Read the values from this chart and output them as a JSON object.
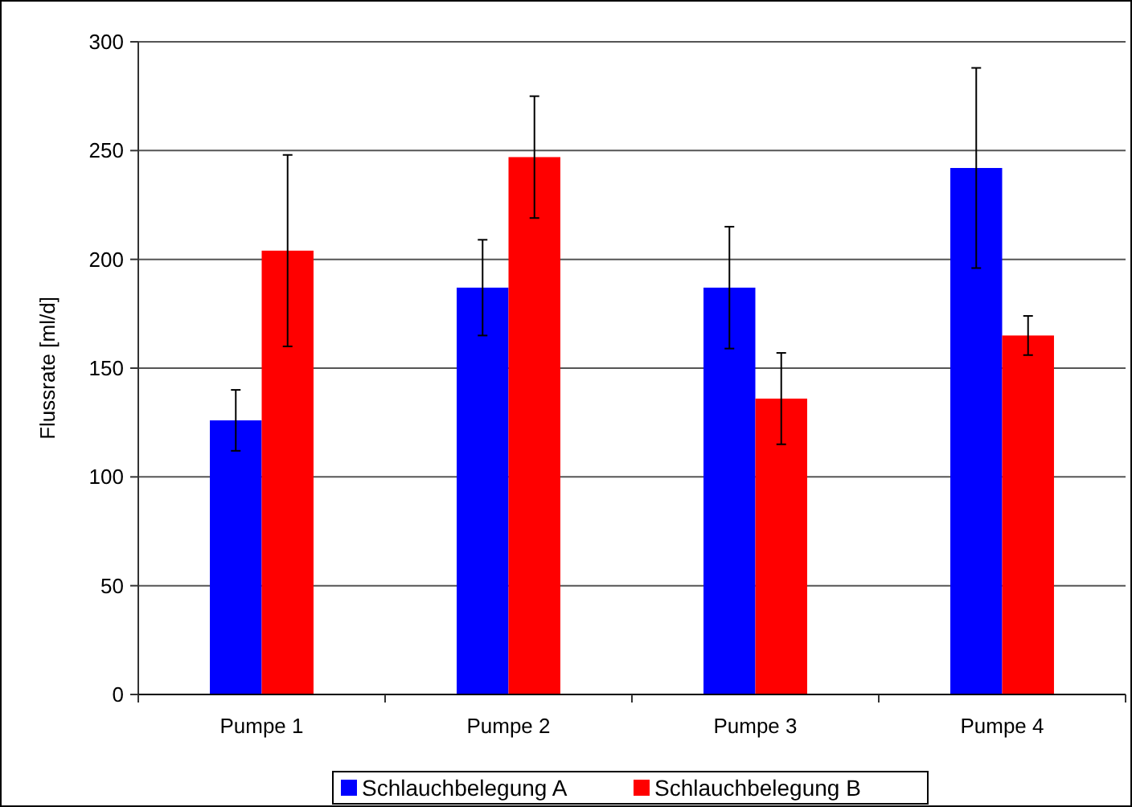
{
  "chart_data": {
    "type": "bar",
    "ylabel": "Flussrate [ml/d]",
    "categories": [
      "Pumpe 1",
      "Pumpe 2",
      "Pumpe 3",
      "Pumpe 4"
    ],
    "series": [
      {
        "name": "Schlauchbelegung A",
        "color": "#0000ff",
        "values": [
          126,
          187,
          187,
          242
        ],
        "errors": [
          14,
          22,
          28,
          46
        ]
      },
      {
        "name": "Schlauchbelegung B",
        "color": "#ff0000",
        "values": [
          204,
          247,
          136,
          165
        ],
        "errors": [
          44,
          28,
          21,
          9
        ]
      }
    ],
    "ylim": [
      0,
      300
    ],
    "yticks": [
      0,
      50,
      100,
      150,
      200,
      250,
      300
    ],
    "grid": "y",
    "legend": "bottom"
  }
}
